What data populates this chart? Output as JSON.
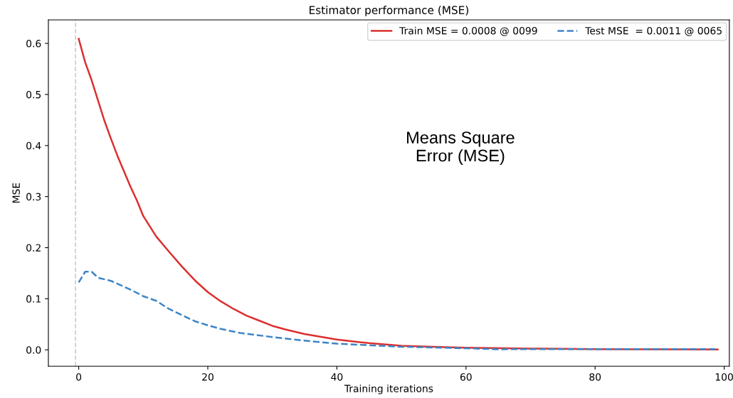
{
  "chart_data": {
    "type": "line",
    "title": "Estimator performance (MSE)",
    "xlabel": "Training iterations",
    "ylabel": "MSE",
    "annotations": [
      "Means Square\nError (MSE)"
    ],
    "series": [
      {
        "name": "Train MSE = 0.0008 @ 0099",
        "color": "#dc2f2f",
        "line_style": "solid",
        "x": [
          0,
          1,
          2,
          3,
          4,
          5,
          6,
          7,
          8,
          9,
          10,
          12,
          14,
          16,
          18,
          20,
          22,
          24,
          26,
          28,
          30,
          32,
          35,
          40,
          45,
          50,
          55,
          60,
          70,
          80,
          90,
          99
        ],
        "values": [
          0.609,
          0.563,
          0.528,
          0.488,
          0.448,
          0.413,
          0.38,
          0.35,
          0.32,
          0.293,
          0.262,
          0.222,
          0.192,
          0.163,
          0.136,
          0.113,
          0.095,
          0.08,
          0.067,
          0.057,
          0.047,
          0.04,
          0.031,
          0.02,
          0.013,
          0.008,
          0.006,
          0.004,
          0.0025,
          0.0015,
          0.001,
          0.0008
        ]
      },
      {
        "name": "Test MSE  = 0.0011 @ 0065",
        "color": "#3d85c6",
        "line_style": "dashed",
        "x": [
          0,
          1,
          2,
          3,
          5,
          8,
          10,
          12,
          14,
          16,
          18,
          20,
          22,
          25,
          30,
          35,
          40,
          45,
          50,
          60,
          65,
          70,
          80,
          90,
          99
        ],
        "values": [
          0.132,
          0.153,
          0.153,
          0.141,
          0.135,
          0.118,
          0.105,
          0.096,
          0.08,
          0.068,
          0.056,
          0.048,
          0.041,
          0.033,
          0.025,
          0.018,
          0.012,
          0.009,
          0.006,
          0.003,
          0.0011,
          0.0015,
          0.0015,
          0.0015,
          0.0015
        ]
      }
    ],
    "ref_lines": [
      {
        "axis": "x",
        "value": -0.5,
        "color": "#cccccc",
        "line_style": "dashed"
      }
    ],
    "xlim": [
      -4.7,
      100.8
    ],
    "xticks": [
      0,
      20,
      40,
      60,
      80,
      100
    ],
    "ylim": [
      -0.032,
      0.646
    ],
    "yticks": [
      {
        "value": 0,
        "label": "0.0"
      },
      {
        "value": 0.1,
        "label": "0.1"
      },
      {
        "value": 0.2,
        "label": "0.2"
      },
      {
        "value": 0.3,
        "label": "0.3"
      },
      {
        "value": 0.4,
        "label": "0.4"
      },
      {
        "value": 0.5,
        "label": "0.5"
      },
      {
        "value": 0.6,
        "label": "0.6"
      }
    ],
    "grid": false,
    "legend": "top right",
    "marker": "none"
  }
}
